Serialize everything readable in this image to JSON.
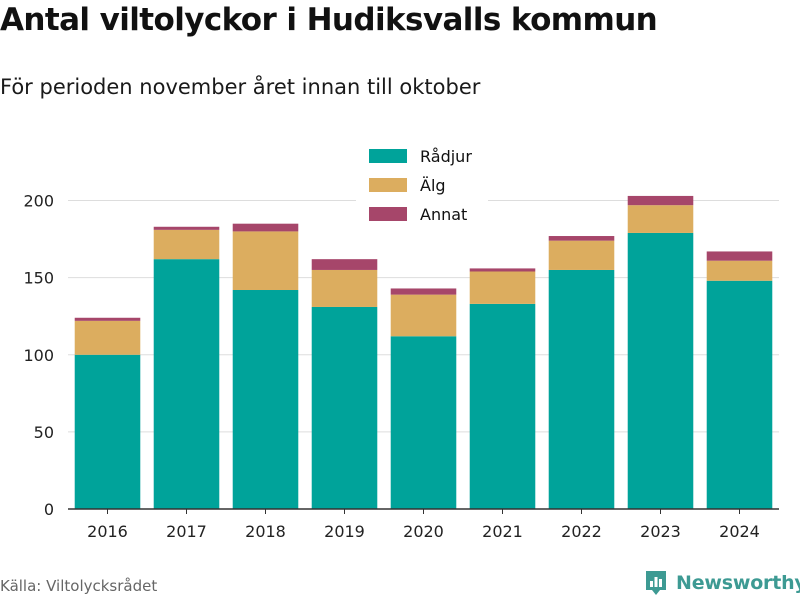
{
  "title": "Antal viltolyckor i Hudiksvalls kommun",
  "subtitle": "För perioden november året innan till oktober",
  "source": "Källa: Viltolycksrådet",
  "brand": {
    "name": "Newsworthy",
    "icon": "newsworthy-logo-icon",
    "color": "#3d9a93"
  },
  "chart_data": {
    "type": "bar",
    "stacked": true,
    "categories": [
      "2016",
      "2017",
      "2018",
      "2019",
      "2020",
      "2021",
      "2022",
      "2023",
      "2024"
    ],
    "series": [
      {
        "name": "Rådjur",
        "color": "#00a39a",
        "values": [
          100,
          162,
          142,
          131,
          112,
          133,
          155,
          179,
          148
        ]
      },
      {
        "name": "Älg",
        "color": "#dcad5f",
        "values": [
          22,
          19,
          38,
          24,
          27,
          21,
          19,
          18,
          13
        ]
      },
      {
        "name": "Annat",
        "color": "#a6466a",
        "values": [
          2,
          2,
          5,
          7,
          4,
          2,
          3,
          6,
          6
        ]
      }
    ],
    "ylim": [
      0,
      225
    ],
    "yticks": [
      0,
      50,
      100,
      150,
      200
    ],
    "grid": true,
    "legend": "top-center",
    "xlabel": "",
    "ylabel": ""
  }
}
